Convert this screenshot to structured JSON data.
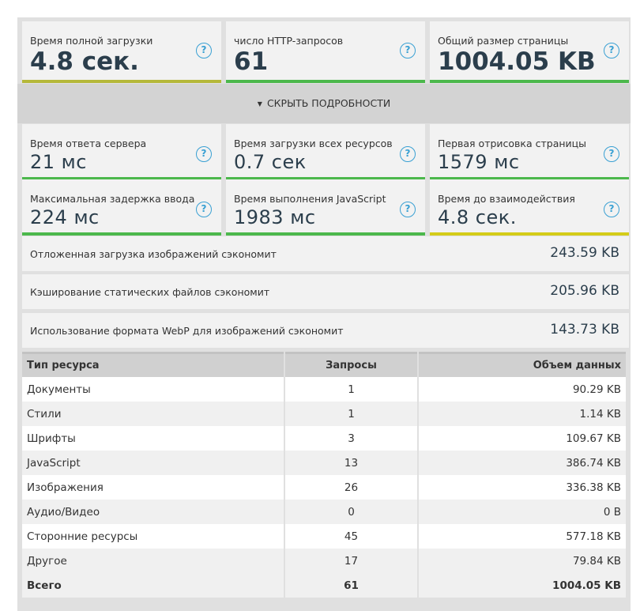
{
  "top_metrics": [
    {
      "label": "Время полной загрузки",
      "value": "4.8 сек.",
      "bar": "#b5b83a"
    },
    {
      "label": "число HTTP-запросов",
      "value": "61",
      "bar": "#4cb84c"
    },
    {
      "label": "Общий размер страницы",
      "value": "1004.05 KB",
      "bar": "#4cb84c"
    }
  ],
  "help_glyph": "?",
  "toggle": {
    "arrow": "▼",
    "label": "СКРЫТЬ ПОДРОБНОСТИ"
  },
  "detail_metrics_1": [
    {
      "label": "Время ответа сервера",
      "value": "21 мс",
      "bar": "#4cb84c"
    },
    {
      "label": "Время загрузки всех ресурсов",
      "value": "0.7 сек",
      "bar": "#4cb84c"
    },
    {
      "label": "Первая отрисовка страницы",
      "value": "1579 мс",
      "bar": "#4cb84c"
    }
  ],
  "detail_metrics_2": [
    {
      "label": "Максимальная задержка ввода",
      "value": "224 мс",
      "bar": "#4cb84c"
    },
    {
      "label": "Время выполнения JavaScript",
      "value": "1983 мс",
      "bar": "#4cb84c"
    },
    {
      "label": "Время до взаимодействия",
      "value": "4.8 сек.",
      "bar": "#d4cc1a"
    }
  ],
  "savings": [
    {
      "label": "Отложенная загрузка изображений сэкономит",
      "value": "243.59 KB"
    },
    {
      "label": "Кэширование статических файлов сэкономит",
      "value": "205.96 KB"
    },
    {
      "label": "Использование формата WebP для изображений сэкономит",
      "value": "143.73 KB"
    }
  ],
  "table": {
    "headers": [
      "Тип ресурса",
      "Запросы",
      "Объем данных"
    ],
    "rows": [
      [
        "Документы",
        "1",
        "90.29 KB"
      ],
      [
        "Стили",
        "1",
        "1.14 KB"
      ],
      [
        "Шрифты",
        "3",
        "109.67 KB"
      ],
      [
        "JavaScript",
        "13",
        "386.74 KB"
      ],
      [
        "Изображения",
        "26",
        "336.38 KB"
      ],
      [
        "Аудио/Видео",
        "0",
        "0 B"
      ],
      [
        "Сторонние ресурсы",
        "45",
        "577.18 KB"
      ],
      [
        "Другое",
        "17",
        "79.84 KB"
      ]
    ],
    "total": [
      "Всего",
      "61",
      "1004.05 KB"
    ]
  }
}
